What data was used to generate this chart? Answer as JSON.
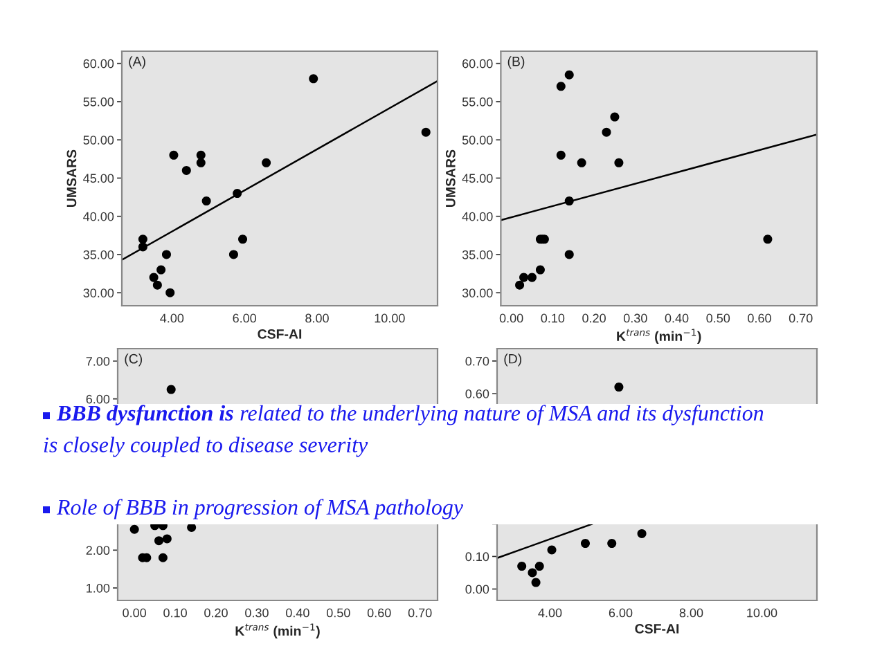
{
  "chart_data": [
    {
      "type": "scatter",
      "xlabel": "CSF-AI",
      "ylabel": "UMSARS",
      "annotations": [
        "(A)"
      ],
      "grid": false,
      "xlim": [
        2.62,
        11.32
      ],
      "ylim": [
        28.3,
        61.6
      ],
      "xticks": [
        {
          "value": 4,
          "label": "4.00"
        },
        {
          "value": 6,
          "label": "6.00"
        },
        {
          "value": 8,
          "label": "8.00"
        },
        {
          "value": 10,
          "label": "10.00"
        }
      ],
      "yticks": [
        {
          "value": 30,
          "label": "30.00"
        },
        {
          "value": 35,
          "label": "35.00"
        },
        {
          "value": 40,
          "label": "40.00"
        },
        {
          "value": 45,
          "label": "45.00"
        },
        {
          "value": 50,
          "label": "50.00"
        },
        {
          "value": 55,
          "label": "55.00"
        },
        {
          "value": 60,
          "label": "60.00"
        }
      ],
      "series": [
        {
          "color": "#000000",
          "marker": "circle",
          "x": [
            3.2,
            3.2,
            3.85,
            3.7,
            3.5,
            3.6,
            3.95,
            4.05,
            4.4,
            4.8,
            4.8,
            4.95,
            5.8,
            5.7,
            5.95,
            6.6,
            7.9,
            11.0
          ],
          "values": [
            37,
            36,
            35,
            33,
            32,
            31,
            30,
            48,
            46,
            47,
            48,
            42,
            43,
            35,
            37,
            47,
            58,
            51
          ]
        },
        {
          "type": "line",
          "color": "#000000",
          "x": [
            2.62,
            11.32
          ],
          "values": [
            34.3,
            57.7
          ]
        }
      ]
    },
    {
      "type": "scatter",
      "xlabel": "K$^{trans}$ (min$^{−1}$)",
      "ylabel": "UMSARS",
      "annotations": [
        "(B)"
      ],
      "grid": false,
      "xlim": [
        -0.0255,
        0.739
      ],
      "ylim": [
        28.3,
        61.6
      ],
      "xticks": [
        {
          "value": 0,
          "label": "0.00"
        },
        {
          "value": 0.1,
          "label": "0.10"
        },
        {
          "value": 0.2,
          "label": "0.20"
        },
        {
          "value": 0.3,
          "label": "0.30"
        },
        {
          "value": 0.4,
          "label": "0.40"
        },
        {
          "value": 0.5,
          "label": "0.50"
        },
        {
          "value": 0.6,
          "label": "0.60"
        },
        {
          "value": 0.7,
          "label": "0.70"
        }
      ],
      "yticks": [
        {
          "value": 30,
          "label": "30.00"
        },
        {
          "value": 35,
          "label": "35.00"
        },
        {
          "value": 40,
          "label": "40.00"
        },
        {
          "value": 45,
          "label": "45.00"
        },
        {
          "value": 50,
          "label": "50.00"
        },
        {
          "value": 55,
          "label": "55.00"
        },
        {
          "value": 60,
          "label": "60.00"
        }
      ],
      "series": [
        {
          "color": "#000000",
          "marker": "circle",
          "x": [
            0.02,
            0.03,
            0.05,
            0.07,
            0.07,
            0.075,
            0.08,
            0.12,
            0.14,
            0.12,
            0.14,
            0.14,
            0.17,
            0.23,
            0.25,
            0.26,
            0.62
          ],
          "values": [
            31,
            32,
            32,
            33,
            37,
            37,
            37,
            57,
            58.5,
            48,
            42,
            35,
            47,
            51,
            53,
            47,
            37
          ]
        },
        {
          "type": "line",
          "color": "#000000",
          "x": [
            -0.0255,
            0.739
          ],
          "values": [
            39.5,
            50.7
          ]
        }
      ]
    },
    {
      "type": "scatter",
      "xlabel": "K$^{trans}$ (min$^{−1}$)",
      "annotations": [
        "(C)",
        "BBB dysfunction is",
        "related to the underlying nature of MSA and its dysfunction",
        "is closely coupled to disease severity",
        "Role of BBB in progression of MSA pathology"
      ],
      "grid": false,
      "xlim": [
        -0.041,
        0.743
      ],
      "ylim": [
        0.67,
        7.33
      ],
      "xticks": [
        {
          "value": 0,
          "label": "0.00"
        },
        {
          "value": 0.1,
          "label": "0.10"
        },
        {
          "value": 0.2,
          "label": "0.20"
        },
        {
          "value": 0.3,
          "label": "0.30"
        },
        {
          "value": 0.4,
          "label": "0.40"
        },
        {
          "value": 0.5,
          "label": "0.50"
        },
        {
          "value": 0.6,
          "label": "0.60"
        },
        {
          "value": 0.7,
          "label": "0.70"
        }
      ],
      "yticks": [
        {
          "value": 1,
          "label": "1.00"
        },
        {
          "value": 2,
          "label": "2.00"
        },
        {
          "value": 3,
          "label": null
        },
        {
          "value": 4,
          "label": null
        },
        {
          "value": 5,
          "label": null
        },
        {
          "value": 6,
          "label": "6.00"
        },
        {
          "value": 7,
          "label": "7.00"
        }
      ],
      "series": [
        {
          "color": "#000000",
          "marker": "circle",
          "x": [
            0.09,
            0.0,
            0.05,
            0.07,
            0.14,
            0.06,
            0.08,
            0.02,
            0.03,
            0.07
          ],
          "values": [
            6.25,
            2.55,
            2.65,
            2.65,
            2.6,
            2.25,
            2.3,
            1.8,
            1.8,
            1.8
          ]
        }
      ]
    },
    {
      "type": "scatter",
      "xlabel": "CSF-AI",
      "annotations": [
        "(D)"
      ],
      "grid": false,
      "xlim": [
        2.5,
        11.56
      ],
      "ylim": [
        -0.035,
        0.738
      ],
      "xticks": [
        {
          "value": 4,
          "label": "4.00"
        },
        {
          "value": 6,
          "label": "6.00"
        },
        {
          "value": 8,
          "label": "8.00"
        },
        {
          "value": 10,
          "label": "10.00"
        }
      ],
      "yticks": [
        {
          "value": 0,
          "label": "0.00"
        },
        {
          "value": 0.1,
          "label": "0.10"
        },
        {
          "value": 0.2,
          "label": null
        },
        {
          "value": 0.3,
          "label": null
        },
        {
          "value": 0.4,
          "label": null
        },
        {
          "value": 0.5,
          "label": null
        },
        {
          "value": 0.6,
          "label": "0.60"
        },
        {
          "value": 0.7,
          "label": "0.70"
        }
      ],
      "series": [
        {
          "color": "#000000",
          "marker": "circle",
          "x": [
            5.95,
            3.2,
            3.5,
            3.6,
            3.7,
            4.05,
            5.0,
            5.75,
            6.6
          ],
          "values": [
            0.62,
            0.07,
            0.05,
            0.02,
            0.07,
            0.12,
            0.14,
            0.14,
            0.17
          ]
        },
        {
          "type": "line",
          "color": "#000000",
          "x": [
            2.5,
            5.2
          ],
          "values": [
            0.095,
            0.2
          ]
        }
      ]
    }
  ]
}
